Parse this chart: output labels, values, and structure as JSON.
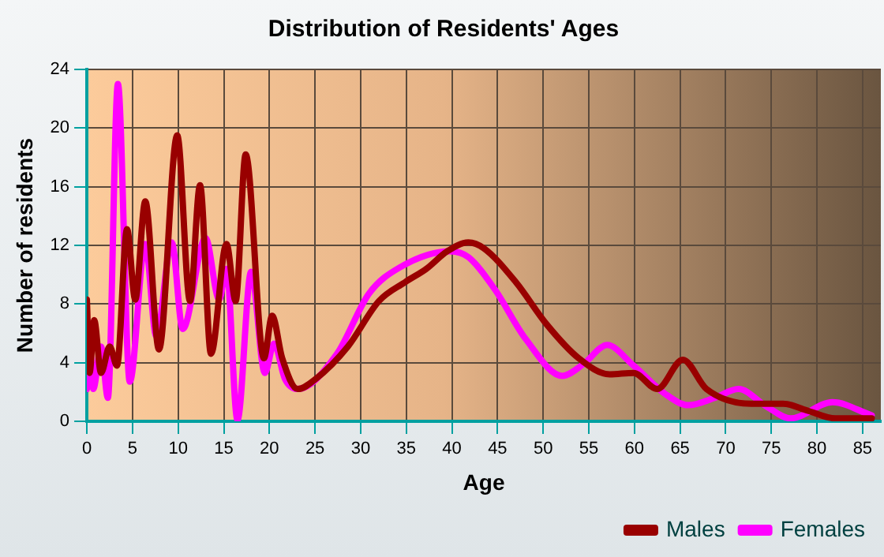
{
  "chart_data": {
    "type": "line",
    "title": "Distribution of Residents' Ages",
    "xlabel": "Age",
    "ylabel": "Number of residents",
    "xlim": [
      0,
      87
    ],
    "xticks": [
      0,
      5,
      10,
      15,
      20,
      25,
      30,
      35,
      40,
      45,
      50,
      55,
      60,
      65,
      70,
      75,
      80,
      85
    ],
    "ylim": [
      0,
      24
    ],
    "yticks": [
      0,
      4,
      8,
      12,
      16,
      20,
      24
    ],
    "grid": true,
    "legend": "bottom right",
    "marker": "none",
    "line_style": "solid",
    "series": [
      {
        "name": "Males",
        "color": "#990000",
        "x": [
          0,
          0.3,
          0.8,
          1.55,
          2.5,
          3.3,
          4.4,
          5.3,
          6.4,
          7.9,
          9.9,
          11.3,
          12.4,
          13.6,
          15.3,
          16.3,
          17.4,
          19.4,
          20.3,
          21.4,
          23.1,
          25.1,
          28.6,
          32,
          34.9,
          37.2,
          39.5,
          41.8,
          43.5,
          47,
          50.4,
          53.9,
          57.3,
          59.9,
          62.5,
          65.3,
          67.9,
          72.8,
          76.3,
          79.1,
          82,
          86
        ],
        "values": [
          8.3,
          3.3,
          6.9,
          3.3,
          5.1,
          3.8,
          13.1,
          8.3,
          15,
          4.9,
          19.5,
          8.2,
          16.1,
          4.6,
          12.1,
          8.2,
          18.2,
          4.3,
          7.2,
          4.3,
          2.2,
          2.9,
          5.1,
          8.2,
          9.5,
          10.4,
          11.6,
          12.2,
          11.8,
          9.5,
          6.6,
          4.3,
          3.2,
          3.3,
          2.2,
          4.2,
          2.2,
          1.2,
          1.2,
          0.7,
          0.2,
          0.2
        ]
      },
      {
        "name": "Females",
        "color": "#ff00ff",
        "x": [
          0,
          0.4,
          0.7,
          1.55,
          2.3,
          3.4,
          4.7,
          6.4,
          7.6,
          9.3,
          10.5,
          13,
          14.5,
          15.3,
          16.5,
          18,
          19.5,
          20.5,
          21.7,
          23.1,
          27.4,
          30.9,
          34.3,
          39.8,
          41.8,
          44.7,
          48.1,
          52.1,
          54.4,
          57,
          59.9,
          63.3,
          65.9,
          68.8,
          71.4,
          74.5,
          77.1,
          81.7,
          86
        ],
        "values": [
          2.2,
          4.6,
          2.2,
          5.1,
          1.6,
          23,
          2.7,
          12.1,
          5.8,
          12.2,
          6.3,
          12.5,
          8.3,
          10.4,
          0.1,
          10.2,
          3.3,
          5.3,
          2.9,
          2.2,
          4.6,
          8.7,
          10.5,
          11.6,
          11.2,
          9,
          5.6,
          3.1,
          3.9,
          5.2,
          3.8,
          1.9,
          1.1,
          1.6,
          2.2,
          1,
          0.2,
          1.3,
          0.4
        ]
      }
    ]
  }
}
